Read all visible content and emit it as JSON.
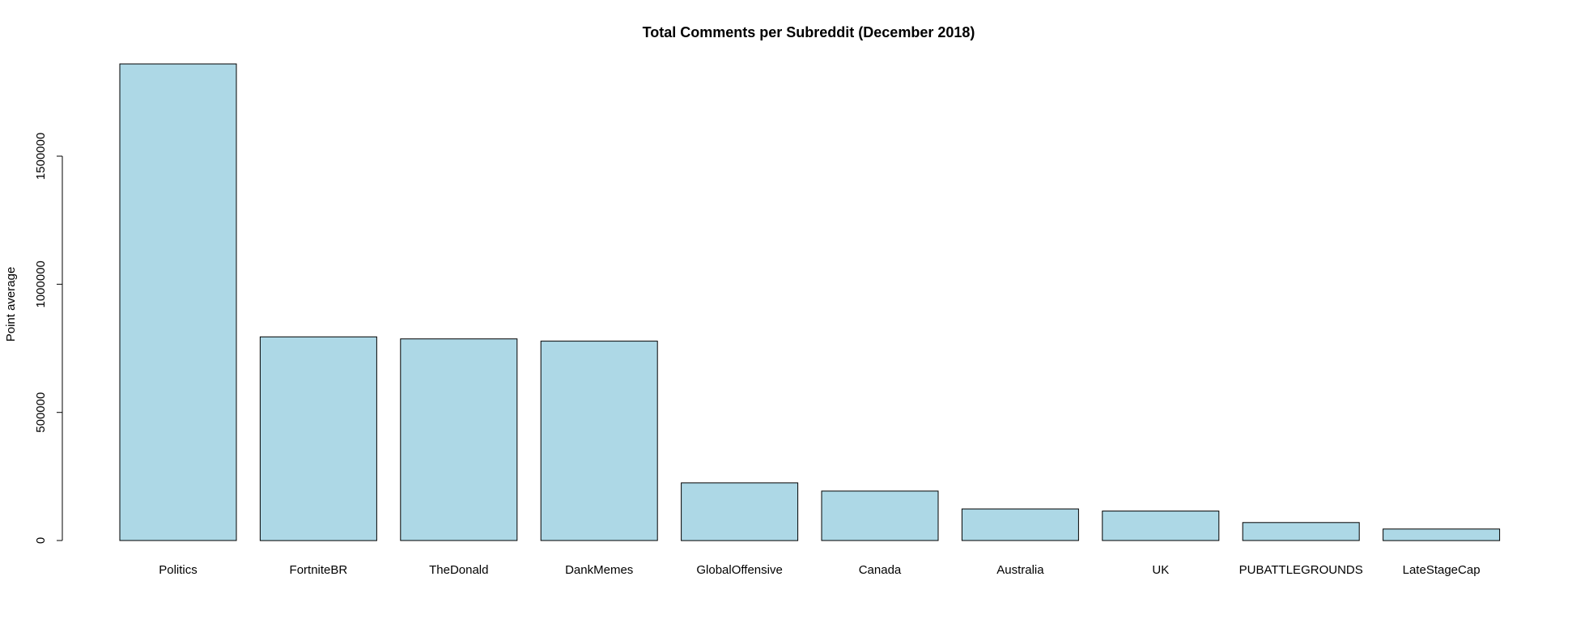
{
  "chart_data": {
    "type": "bar",
    "title": "Total Comments per Subreddit (December 2018)",
    "xlabel": "",
    "ylabel": "Point average",
    "categories": [
      "Politics",
      "FortniteBR",
      "TheDonald",
      "DankMemes",
      "GlobalOffensive",
      "Canada",
      "Australia",
      "UK",
      "PUBATTLEGROUNDS",
      "LateStageCap"
    ],
    "values": [
      1860000,
      795000,
      787000,
      778000,
      225000,
      193000,
      123000,
      115000,
      70000,
      45000
    ],
    "yticks": [
      0,
      500000,
      1000000,
      1500000
    ],
    "ytick_labels": [
      "0",
      "500000",
      "1000000",
      "1500000"
    ],
    "ylim": [
      0,
      1860000
    ],
    "grid": false,
    "legend": null,
    "colors": {
      "bar_fill": "#add8e6",
      "bar_stroke": "#000000",
      "axis": "#000000",
      "text": "#000000",
      "background": "#ffffff"
    }
  }
}
